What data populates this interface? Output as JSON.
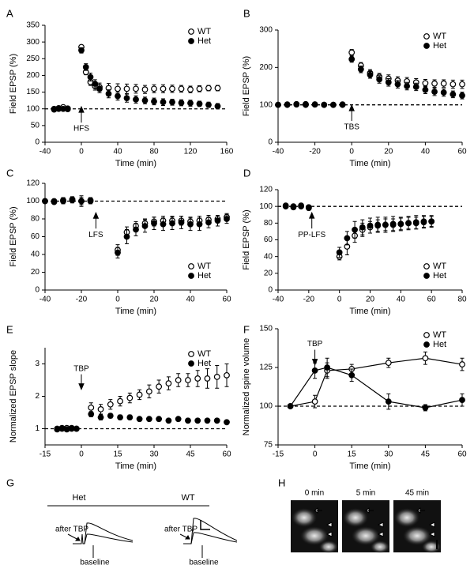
{
  "chart_data": [
    {
      "type": "scatter",
      "panel": "A",
      "xlabel": "Time (min)",
      "ylabel": "Field EPSP (%)",
      "xlim": [
        -40,
        160
      ],
      "xticks": [
        -40,
        0,
        40,
        80,
        120,
        160
      ],
      "ylim": [
        0,
        350
      ],
      "yticks": [
        0,
        50,
        100,
        150,
        200,
        250,
        300,
        350
      ],
      "hline": 100,
      "legend": "upper right",
      "annotations": [
        {
          "text": "HFS",
          "x": 0,
          "y": 40,
          "arrow": "up"
        }
      ],
      "series": [
        {
          "name": "WT",
          "color": "#000000",
          "fill": "#ffffff",
          "x": [
            -30,
            -25,
            -20,
            -15,
            0,
            5,
            10,
            15,
            20,
            30,
            40,
            50,
            60,
            70,
            80,
            90,
            100,
            110,
            120,
            130,
            140,
            150
          ],
          "values": [
            100,
            102,
            105,
            101,
            285,
            210,
            180,
            168,
            165,
            162,
            160,
            160,
            160,
            158,
            160,
            160,
            160,
            160,
            158,
            160,
            162,
            162
          ],
          "errors": [
            5,
            5,
            5,
            5,
            6,
            8,
            10,
            12,
            12,
            14,
            15,
            14,
            13,
            12,
            12,
            12,
            11,
            10,
            10,
            9,
            8,
            8
          ]
        },
        {
          "name": "Het",
          "color": "#000000",
          "fill": "#000000",
          "x": [
            -30,
            -25,
            -20,
            -15,
            0,
            5,
            10,
            15,
            20,
            30,
            40,
            50,
            60,
            70,
            80,
            90,
            100,
            110,
            120,
            130,
            140,
            150
          ],
          "values": [
            98,
            100,
            100,
            99,
            275,
            225,
            195,
            175,
            160,
            145,
            138,
            132,
            128,
            125,
            122,
            120,
            120,
            118,
            117,
            115,
            112,
            108
          ],
          "errors": [
            4,
            4,
            4,
            4,
            8,
            10,
            12,
            12,
            12,
            12,
            12,
            12,
            11,
            10,
            10,
            10,
            9,
            9,
            9,
            8,
            8,
            8
          ]
        }
      ]
    },
    {
      "type": "scatter",
      "panel": "B",
      "xlabel": "Time (min)",
      "ylabel": "Field EPSP (%)",
      "xlim": [
        -40,
        60
      ],
      "xticks": [
        -40,
        -20,
        0,
        20,
        40,
        60
      ],
      "ylim": [
        0,
        300
      ],
      "yticks": [
        0,
        100,
        200,
        300
      ],
      "hline": 100,
      "legend": "upper right",
      "annotations": [
        {
          "text": "TBS",
          "x": 0,
          "y": 40,
          "arrow": "up"
        }
      ],
      "series": [
        {
          "name": "WT",
          "color": "#000000",
          "fill": "#ffffff",
          "x": [
            -40,
            -35,
            -30,
            -25,
            -20,
            -15,
            -10,
            -5,
            0,
            5,
            10,
            15,
            20,
            25,
            30,
            35,
            40,
            45,
            50,
            55,
            60
          ],
          "values": [
            100,
            101,
            102,
            100,
            101,
            100,
            100,
            101,
            240,
            205,
            185,
            175,
            170,
            165,
            163,
            160,
            158,
            157,
            157,
            155,
            155
          ],
          "errors": [
            3,
            3,
            3,
            3,
            3,
            3,
            3,
            3,
            8,
            8,
            9,
            9,
            10,
            10,
            10,
            10,
            10,
            10,
            10,
            11,
            11
          ]
        },
        {
          "name": "Het",
          "color": "#000000",
          "fill": "#000000",
          "x": [
            -40,
            -35,
            -30,
            -25,
            -20,
            -15,
            -10,
            -5,
            0,
            5,
            10,
            15,
            20,
            25,
            30,
            35,
            40,
            45,
            50,
            55,
            60
          ],
          "values": [
            100,
            100,
            101,
            102,
            101,
            100,
            100,
            100,
            222,
            195,
            180,
            168,
            160,
            155,
            150,
            148,
            140,
            135,
            133,
            128,
            125
          ],
          "errors": [
            3,
            3,
            3,
            3,
            3,
            3,
            3,
            3,
            8,
            9,
            9,
            10,
            10,
            10,
            10,
            10,
            10,
            10,
            10,
            9,
            9
          ]
        }
      ]
    },
    {
      "type": "scatter",
      "panel": "C",
      "xlabel": "Time (min)",
      "ylabel": "Field EPSP (%)",
      "xlim": [
        -40,
        60
      ],
      "xticks": [
        -40,
        -20,
        0,
        20,
        40,
        60
      ],
      "ylim": [
        0,
        120
      ],
      "yticks": [
        0,
        20,
        40,
        60,
        80,
        100,
        120
      ],
      "hline": 100,
      "legend": "lower right",
      "annotations": [
        {
          "text": "LFS",
          "x": -12,
          "y": 62,
          "arrow": "up"
        }
      ],
      "series": [
        {
          "name": "WT",
          "color": "#000000",
          "fill": "#ffffff",
          "x": [
            -40,
            -35,
            -30,
            -25,
            -20,
            -15,
            0,
            5,
            10,
            15,
            20,
            25,
            30,
            35,
            40,
            45,
            50,
            55,
            60
          ],
          "values": [
            100,
            100,
            101,
            102,
            100,
            101,
            45,
            65,
            72,
            75,
            77,
            78,
            78,
            78,
            77,
            78,
            79,
            80,
            82
          ],
          "errors": [
            2,
            2,
            3,
            3,
            4,
            3,
            6,
            6,
            5,
            5,
            5,
            5,
            5,
            5,
            5,
            5,
            5,
            4,
            4
          ]
        },
        {
          "name": "Het",
          "color": "#000000",
          "fill": "#000000",
          "x": [
            -40,
            -35,
            -30,
            -25,
            -20,
            -15,
            0,
            5,
            10,
            15,
            20,
            25,
            30,
            35,
            40,
            45,
            50,
            55,
            60
          ],
          "values": [
            100,
            99,
            100,
            101,
            100,
            100,
            42,
            60,
            68,
            72,
            75,
            74,
            75,
            76,
            74,
            74,
            76,
            78,
            80
          ],
          "errors": [
            2,
            2,
            3,
            3,
            6,
            3,
            6,
            8,
            7,
            7,
            7,
            7,
            7,
            7,
            7,
            7,
            6,
            6,
            5
          ]
        }
      ]
    },
    {
      "type": "scatter",
      "panel": "D",
      "xlabel": "Time (min)",
      "ylabel": "Field EPSP (%)",
      "xlim": [
        -40,
        80
      ],
      "xticks": [
        -40,
        -20,
        0,
        20,
        40,
        60,
        80
      ],
      "ylim": [
        0,
        120
      ],
      "yticks": [
        0,
        20,
        40,
        60,
        80,
        100,
        120
      ],
      "hline": 100,
      "legend": "lower right",
      "annotations": [
        {
          "text": "PP-LFS",
          "x": -18,
          "y": 66,
          "arrow": "up"
        }
      ],
      "series": [
        {
          "name": "WT",
          "color": "#000000",
          "fill": "#ffffff",
          "x": [
            -35,
            -30,
            -25,
            -20,
            0,
            5,
            10,
            15,
            20,
            25,
            30,
            35,
            40,
            45,
            50,
            55,
            60
          ],
          "values": [
            101,
            100,
            101,
            99,
            40,
            52,
            65,
            72,
            75,
            77,
            78,
            78,
            79,
            80,
            80,
            81,
            82
          ],
          "errors": [
            2,
            2,
            2,
            2,
            4,
            10,
            8,
            8,
            7,
            7,
            7,
            7,
            7,
            7,
            7,
            7,
            6
          ]
        },
        {
          "name": "Het",
          "color": "#000000",
          "fill": "#000000",
          "x": [
            -35,
            -30,
            -25,
            -20,
            0,
            5,
            10,
            15,
            20,
            25,
            30,
            35,
            40,
            45,
            50,
            55,
            60
          ],
          "values": [
            100,
            99,
            100,
            98,
            45,
            62,
            72,
            75,
            77,
            78,
            78,
            79,
            79,
            80,
            81,
            82,
            82
          ],
          "errors": [
            2,
            2,
            2,
            2,
            6,
            8,
            10,
            9,
            9,
            9,
            9,
            9,
            8,
            8,
            8,
            7,
            7
          ]
        }
      ]
    },
    {
      "type": "scatter",
      "panel": "E",
      "xlabel": "Time (min)",
      "ylabel": "Normalized EPSP slope",
      "xlim": [
        -15,
        60
      ],
      "xticks": [
        -15,
        0,
        15,
        30,
        45,
        60
      ],
      "ylim": [
        0.5,
        3.5
      ],
      "yticks": [
        1,
        2,
        3
      ],
      "hline": 1,
      "legend": "upper right",
      "annotations": [
        {
          "text": "TBP",
          "x": 0,
          "y": 2.85,
          "arrow": "down"
        }
      ],
      "series": [
        {
          "name": "WT",
          "color": "#000000",
          "fill": "#ffffff",
          "x": [
            -10,
            -8,
            -6,
            -4,
            -2,
            4,
            8,
            12,
            16,
            20,
            24,
            28,
            32,
            36,
            40,
            44,
            48,
            52,
            56,
            60
          ],
          "values": [
            0.98,
            1.0,
            1.02,
            1.0,
            1.0,
            1.65,
            1.6,
            1.75,
            1.85,
            1.95,
            2.05,
            2.15,
            2.3,
            2.4,
            2.5,
            2.5,
            2.55,
            2.55,
            2.6,
            2.65
          ],
          "errors": [
            0.05,
            0.05,
            0.05,
            0.05,
            0.05,
            0.15,
            0.15,
            0.15,
            0.15,
            0.15,
            0.15,
            0.2,
            0.2,
            0.2,
            0.2,
            0.2,
            0.25,
            0.3,
            0.35,
            0.35
          ]
        },
        {
          "name": "Het",
          "color": "#000000",
          "fill": "#000000",
          "x": [
            -10,
            -8,
            -6,
            -4,
            -2,
            4,
            8,
            12,
            16,
            20,
            24,
            28,
            32,
            36,
            40,
            44,
            48,
            52,
            56,
            60
          ],
          "values": [
            1.0,
            1.02,
            0.98,
            1.02,
            1.0,
            1.45,
            1.35,
            1.4,
            1.35,
            1.35,
            1.3,
            1.3,
            1.3,
            1.25,
            1.3,
            1.25,
            1.25,
            1.25,
            1.25,
            1.2
          ],
          "errors": [
            0.03,
            0.03,
            0.03,
            0.03,
            0.03,
            0.08,
            0.08,
            0.07,
            0.07,
            0.07,
            0.06,
            0.06,
            0.06,
            0.06,
            0.06,
            0.06,
            0.06,
            0.06,
            0.06,
            0.06
          ]
        }
      ]
    },
    {
      "type": "scatter",
      "panel": "F",
      "xlabel": "Time (min)",
      "ylabel": "Normalized spine volume",
      "xlim": [
        -15,
        60
      ],
      "xticks": [
        -15,
        0,
        15,
        30,
        45,
        60
      ],
      "ylim": [
        75,
        150
      ],
      "yticks": [
        75,
        100,
        125,
        150
      ],
      "hline": 100,
      "legend": "upper right",
      "lines": true,
      "annotations": [
        {
          "text": "TBP",
          "x": 0,
          "y": 140,
          "arrow": "down"
        }
      ],
      "series": [
        {
          "name": "WT",
          "color": "#000000",
          "fill": "#ffffff",
          "x": [
            -10,
            0,
            5,
            15,
            30,
            45,
            60
          ],
          "values": [
            100,
            103,
            123,
            124,
            128,
            131,
            127
          ],
          "errors": [
            1,
            4,
            5,
            3,
            3,
            4,
            4
          ]
        },
        {
          "name": "Het",
          "color": "#000000",
          "fill": "#000000",
          "x": [
            -10,
            0,
            5,
            15,
            30,
            45,
            60
          ],
          "values": [
            100,
            123,
            125,
            120,
            103,
            99,
            104
          ],
          "errors": [
            1,
            5,
            6,
            4,
            5,
            2,
            4
          ]
        }
      ]
    }
  ],
  "figure_g": {
    "panel": "G",
    "groups": [
      {
        "label": "Het",
        "trace_label": "after TBP",
        "baseline_label": "baseline"
      },
      {
        "label": "WT",
        "trace_label": "after TBP",
        "baseline_label": "baseline"
      }
    ]
  },
  "figure_h": {
    "panel": "H",
    "times": [
      "0 min",
      "5 min",
      "45 min"
    ]
  }
}
